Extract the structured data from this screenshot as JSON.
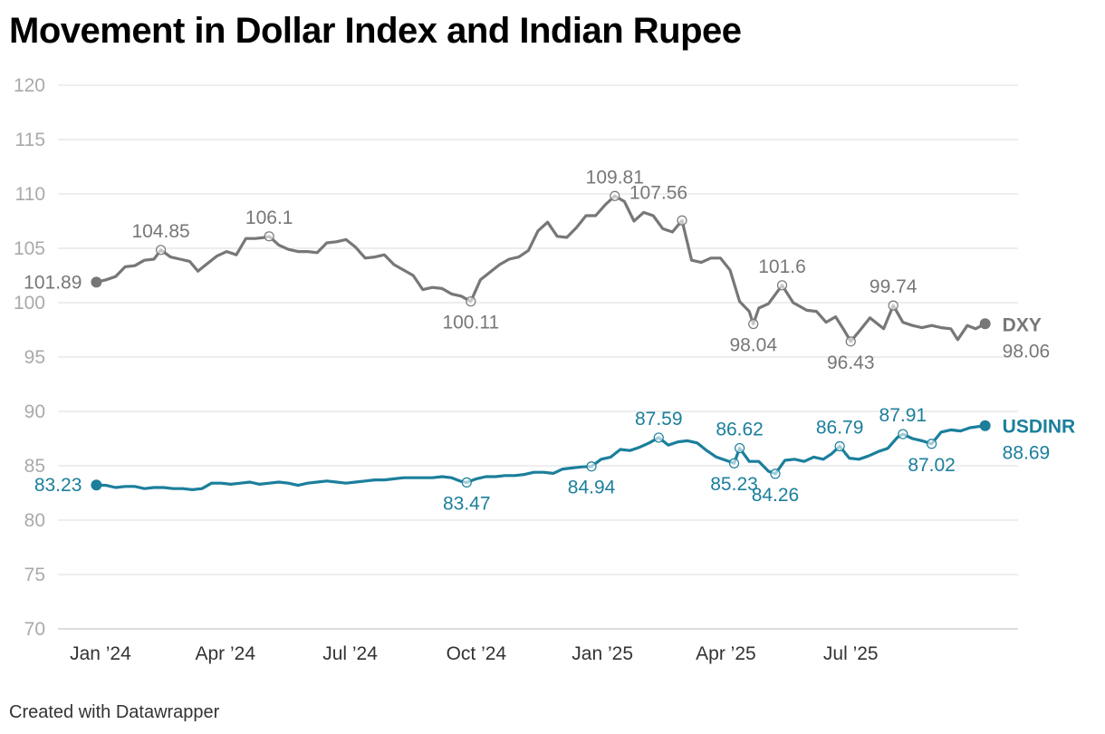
{
  "title": "Movement in Dollar Index and Indian Rupee",
  "credit": "Created with Datawrapper",
  "colors": {
    "dxy": "#777777",
    "usdinr": "#1b7f9c",
    "grid": "#dddddd",
    "ytick": "#aaaaaa",
    "xtick": "#333333"
  },
  "chart_data": {
    "type": "line",
    "title": "Movement in Dollar Index and Indian Rupee",
    "xlabel": "",
    "ylabel": "",
    "ylim": [
      70,
      120
    ],
    "yticks": [
      120,
      115,
      110,
      105,
      100,
      95,
      90,
      85,
      80,
      75,
      70
    ],
    "xlim": [
      "2023-12-01",
      "2025-10-31"
    ],
    "xticks": [
      {
        "date": "2024-01-01",
        "label": "Jan ’24"
      },
      {
        "date": "2024-04-01",
        "label": "Apr ’24"
      },
      {
        "date": "2024-07-01",
        "label": "Jul ’24"
      },
      {
        "date": "2024-10-01",
        "label": "Oct ’24"
      },
      {
        "date": "2025-01-01",
        "label": "Jan ’25"
      },
      {
        "date": "2025-04-01",
        "label": "Apr ’25"
      },
      {
        "date": "2025-07-01",
        "label": "Jul ’25"
      }
    ],
    "grid": true,
    "series": [
      {
        "name": "DXY",
        "end_label": "DXY",
        "end_value_label": "98.06",
        "points": [
          [
            "2023-12-29",
            101.89
          ],
          [
            "2024-01-05",
            102.1
          ],
          [
            "2024-01-12",
            102.4
          ],
          [
            "2024-01-19",
            103.3
          ],
          [
            "2024-01-26",
            103.4
          ],
          [
            "2024-02-02",
            103.9
          ],
          [
            "2024-02-09",
            104.0
          ],
          [
            "2024-02-14",
            104.85
          ],
          [
            "2024-02-21",
            104.2
          ],
          [
            "2024-02-28",
            104.0
          ],
          [
            "2024-03-06",
            103.8
          ],
          [
            "2024-03-12",
            102.9
          ],
          [
            "2024-03-19",
            103.6
          ],
          [
            "2024-03-26",
            104.3
          ],
          [
            "2024-04-02",
            104.7
          ],
          [
            "2024-04-09",
            104.4
          ],
          [
            "2024-04-16",
            105.9
          ],
          [
            "2024-04-23",
            105.9
          ],
          [
            "2024-04-30",
            106.0
          ],
          [
            "2024-05-03",
            106.1
          ],
          [
            "2024-05-10",
            105.3
          ],
          [
            "2024-05-17",
            104.9
          ],
          [
            "2024-05-24",
            104.7
          ],
          [
            "2024-05-31",
            104.7
          ],
          [
            "2024-06-07",
            104.6
          ],
          [
            "2024-06-14",
            105.5
          ],
          [
            "2024-06-21",
            105.6
          ],
          [
            "2024-06-28",
            105.8
          ],
          [
            "2024-07-05",
            105.1
          ],
          [
            "2024-07-12",
            104.1
          ],
          [
            "2024-07-19",
            104.2
          ],
          [
            "2024-07-26",
            104.4
          ],
          [
            "2024-08-02",
            103.5
          ],
          [
            "2024-08-09",
            103.0
          ],
          [
            "2024-08-16",
            102.5
          ],
          [
            "2024-08-23",
            101.2
          ],
          [
            "2024-08-30",
            101.4
          ],
          [
            "2024-09-06",
            101.3
          ],
          [
            "2024-09-13",
            100.8
          ],
          [
            "2024-09-20",
            100.6
          ],
          [
            "2024-09-27",
            100.11
          ],
          [
            "2024-10-04",
            102.1
          ],
          [
            "2024-10-11",
            102.8
          ],
          [
            "2024-10-18",
            103.5
          ],
          [
            "2024-10-25",
            104.0
          ],
          [
            "2024-11-01",
            104.2
          ],
          [
            "2024-11-08",
            104.8
          ],
          [
            "2024-11-15",
            106.6
          ],
          [
            "2024-11-22",
            107.4
          ],
          [
            "2024-11-29",
            106.1
          ],
          [
            "2024-12-06",
            106.0
          ],
          [
            "2024-12-13",
            106.9
          ],
          [
            "2024-12-20",
            108.0
          ],
          [
            "2024-12-27",
            108.0
          ],
          [
            "2025-01-03",
            109.0
          ],
          [
            "2025-01-10",
            109.81
          ],
          [
            "2025-01-17",
            109.3
          ],
          [
            "2025-01-24",
            107.5
          ],
          [
            "2025-01-31",
            108.3
          ],
          [
            "2025-02-07",
            108.0
          ],
          [
            "2025-02-14",
            106.8
          ],
          [
            "2025-02-21",
            106.5
          ],
          [
            "2025-02-28",
            107.56
          ],
          [
            "2025-03-07",
            103.9
          ],
          [
            "2025-03-14",
            103.7
          ],
          [
            "2025-03-21",
            104.1
          ],
          [
            "2025-03-28",
            104.1
          ],
          [
            "2025-04-04",
            103.0
          ],
          [
            "2025-04-11",
            100.1
          ],
          [
            "2025-04-18",
            99.2
          ],
          [
            "2025-04-21",
            98.04
          ],
          [
            "2025-04-25",
            99.5
          ],
          [
            "2025-05-02",
            99.9
          ],
          [
            "2025-05-12",
            101.6
          ],
          [
            "2025-05-20",
            100.0
          ],
          [
            "2025-05-30",
            99.3
          ],
          [
            "2025-06-06",
            99.2
          ],
          [
            "2025-06-13",
            98.2
          ],
          [
            "2025-06-20",
            98.7
          ],
          [
            "2025-06-26",
            97.5
          ],
          [
            "2025-07-01",
            96.43
          ],
          [
            "2025-07-08",
            97.5
          ],
          [
            "2025-07-15",
            98.6
          ],
          [
            "2025-07-25",
            97.6
          ],
          [
            "2025-08-01",
            99.74
          ],
          [
            "2025-08-08",
            98.2
          ],
          [
            "2025-08-15",
            97.9
          ],
          [
            "2025-08-22",
            97.7
          ],
          [
            "2025-08-29",
            97.9
          ],
          [
            "2025-09-05",
            97.7
          ],
          [
            "2025-09-12",
            97.6
          ],
          [
            "2025-09-17",
            96.6
          ],
          [
            "2025-09-24",
            97.9
          ],
          [
            "2025-09-30",
            97.6
          ],
          [
            "2025-10-07",
            98.06
          ]
        ],
        "annotations": [
          {
            "date": "2023-12-29",
            "value": 101.89,
            "label": "101.89",
            "pos": "left"
          },
          {
            "date": "2024-02-14",
            "value": 104.85,
            "label": "104.85",
            "pos": "above"
          },
          {
            "date": "2024-05-03",
            "value": 106.1,
            "label": "106.1",
            "pos": "above"
          },
          {
            "date": "2024-09-27",
            "value": 100.11,
            "label": "100.11",
            "pos": "below"
          },
          {
            "date": "2025-01-10",
            "value": 109.81,
            "label": "109.81",
            "pos": "above"
          },
          {
            "date": "2025-02-28",
            "value": 107.56,
            "label": "107.56",
            "pos": "above-left"
          },
          {
            "date": "2025-04-21",
            "value": 98.04,
            "label": "98.04",
            "pos": "below"
          },
          {
            "date": "2025-05-12",
            "value": 101.6,
            "label": "101.6",
            "pos": "above"
          },
          {
            "date": "2025-07-01",
            "value": 96.43,
            "label": "96.43",
            "pos": "below"
          },
          {
            "date": "2025-08-01",
            "value": 99.74,
            "label": "99.74",
            "pos": "above"
          }
        ]
      },
      {
        "name": "USDINR",
        "end_label": "USDINR",
        "end_value_label": "88.69",
        "points": [
          [
            "2023-12-29",
            83.23
          ],
          [
            "2024-01-05",
            83.2
          ],
          [
            "2024-01-12",
            83.0
          ],
          [
            "2024-01-19",
            83.1
          ],
          [
            "2024-01-26",
            83.1
          ],
          [
            "2024-02-02",
            82.9
          ],
          [
            "2024-02-09",
            83.0
          ],
          [
            "2024-02-16",
            83.0
          ],
          [
            "2024-02-23",
            82.9
          ],
          [
            "2024-03-01",
            82.9
          ],
          [
            "2024-03-08",
            82.8
          ],
          [
            "2024-03-15",
            82.9
          ],
          [
            "2024-03-22",
            83.4
          ],
          [
            "2024-03-29",
            83.4
          ],
          [
            "2024-04-05",
            83.3
          ],
          [
            "2024-04-12",
            83.4
          ],
          [
            "2024-04-19",
            83.5
          ],
          [
            "2024-04-26",
            83.3
          ],
          [
            "2024-05-03",
            83.4
          ],
          [
            "2024-05-10",
            83.5
          ],
          [
            "2024-05-17",
            83.4
          ],
          [
            "2024-05-24",
            83.2
          ],
          [
            "2024-05-31",
            83.4
          ],
          [
            "2024-06-07",
            83.5
          ],
          [
            "2024-06-14",
            83.6
          ],
          [
            "2024-06-21",
            83.5
          ],
          [
            "2024-06-28",
            83.4
          ],
          [
            "2024-07-05",
            83.5
          ],
          [
            "2024-07-12",
            83.6
          ],
          [
            "2024-07-19",
            83.7
          ],
          [
            "2024-07-26",
            83.7
          ],
          [
            "2024-08-02",
            83.8
          ],
          [
            "2024-08-09",
            83.9
          ],
          [
            "2024-08-16",
            83.9
          ],
          [
            "2024-08-23",
            83.9
          ],
          [
            "2024-08-30",
            83.9
          ],
          [
            "2024-09-06",
            84.0
          ],
          [
            "2024-09-13",
            83.9
          ],
          [
            "2024-09-19",
            83.6
          ],
          [
            "2024-09-24",
            83.47
          ],
          [
            "2024-10-01",
            83.8
          ],
          [
            "2024-10-08",
            84.0
          ],
          [
            "2024-10-15",
            84.0
          ],
          [
            "2024-10-22",
            84.1
          ],
          [
            "2024-10-29",
            84.1
          ],
          [
            "2024-11-05",
            84.2
          ],
          [
            "2024-11-12",
            84.4
          ],
          [
            "2024-11-19",
            84.4
          ],
          [
            "2024-11-26",
            84.3
          ],
          [
            "2024-12-03",
            84.7
          ],
          [
            "2024-12-10",
            84.8
          ],
          [
            "2024-12-17",
            84.9
          ],
          [
            "2024-12-24",
            84.94
          ],
          [
            "2024-12-31",
            85.6
          ],
          [
            "2025-01-07",
            85.8
          ],
          [
            "2025-01-14",
            86.5
          ],
          [
            "2025-01-21",
            86.4
          ],
          [
            "2025-01-28",
            86.7
          ],
          [
            "2025-02-04",
            87.1
          ],
          [
            "2025-02-11",
            87.59
          ],
          [
            "2025-02-18",
            86.9
          ],
          [
            "2025-02-25",
            87.2
          ],
          [
            "2025-03-04",
            87.3
          ],
          [
            "2025-03-11",
            87.1
          ],
          [
            "2025-03-18",
            86.4
          ],
          [
            "2025-03-25",
            85.8
          ],
          [
            "2025-04-01",
            85.5
          ],
          [
            "2025-04-07",
            85.23
          ],
          [
            "2025-04-11",
            86.62
          ],
          [
            "2025-04-18",
            85.4
          ],
          [
            "2025-04-25",
            85.4
          ],
          [
            "2025-05-02",
            84.5
          ],
          [
            "2025-05-07",
            84.26
          ],
          [
            "2025-05-14",
            85.5
          ],
          [
            "2025-05-21",
            85.6
          ],
          [
            "2025-05-28",
            85.4
          ],
          [
            "2025-06-04",
            85.8
          ],
          [
            "2025-06-11",
            85.6
          ],
          [
            "2025-06-17",
            86.1
          ],
          [
            "2025-06-23",
            86.79
          ],
          [
            "2025-06-30",
            85.7
          ],
          [
            "2025-07-07",
            85.6
          ],
          [
            "2025-07-14",
            85.9
          ],
          [
            "2025-07-21",
            86.3
          ],
          [
            "2025-07-28",
            86.6
          ],
          [
            "2025-08-04",
            87.6
          ],
          [
            "2025-08-08",
            87.91
          ],
          [
            "2025-08-15",
            87.5
          ],
          [
            "2025-08-22",
            87.3
          ],
          [
            "2025-08-29",
            87.02
          ],
          [
            "2025-09-05",
            88.1
          ],
          [
            "2025-09-12",
            88.3
          ],
          [
            "2025-09-19",
            88.2
          ],
          [
            "2025-09-26",
            88.5
          ],
          [
            "2025-10-07",
            88.69
          ]
        ],
        "annotations": [
          {
            "date": "2023-12-29",
            "value": 83.23,
            "label": "83.23",
            "pos": "left"
          },
          {
            "date": "2024-09-24",
            "value": 83.47,
            "label": "83.47",
            "pos": "below"
          },
          {
            "date": "2024-12-24",
            "value": 84.94,
            "label": "84.94",
            "pos": "below"
          },
          {
            "date": "2025-02-11",
            "value": 87.59,
            "label": "87.59",
            "pos": "above"
          },
          {
            "date": "2025-04-07",
            "value": 85.23,
            "label": "85.23",
            "pos": "below"
          },
          {
            "date": "2025-04-11",
            "value": 86.62,
            "label": "86.62",
            "pos": "above"
          },
          {
            "date": "2025-05-07",
            "value": 84.26,
            "label": "84.26",
            "pos": "below"
          },
          {
            "date": "2025-06-23",
            "value": 86.79,
            "label": "86.79",
            "pos": "above"
          },
          {
            "date": "2025-08-08",
            "value": 87.91,
            "label": "87.91",
            "pos": "above"
          },
          {
            "date": "2025-08-29",
            "value": 87.02,
            "label": "87.02",
            "pos": "below"
          }
        ]
      }
    ]
  }
}
